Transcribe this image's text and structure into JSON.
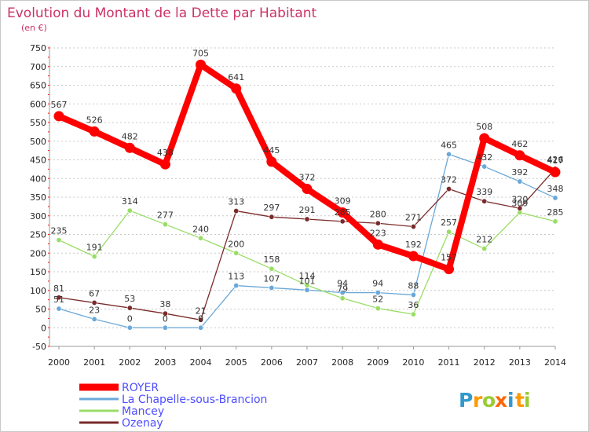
{
  "chart_data": {
    "type": "line",
    "title": "Evolution du Montant de la Dette par Habitant",
    "subtitle": "(en €)",
    "xlabel": "",
    "ylabel": "",
    "x": [
      "2000",
      "2001",
      "2002",
      "2003",
      "2004",
      "2005",
      "2006",
      "2007",
      "2008",
      "2009",
      "2010",
      "2011",
      "2012",
      "2013",
      "2014"
    ],
    "ylim": [
      -50,
      750
    ],
    "yticks": [
      -50,
      0,
      50,
      100,
      150,
      200,
      250,
      300,
      350,
      400,
      450,
      500,
      550,
      600,
      650,
      700,
      750
    ],
    "ytick_labels": [
      "-50",
      "0",
      "50",
      "100",
      "150",
      "200",
      "250",
      "300",
      "350",
      "400",
      "450",
      "500",
      "550",
      "600",
      "650",
      "700",
      "750"
    ],
    "grid": "horizontal dotted",
    "legend_position": "bottom",
    "series": [
      {
        "name": "ROYER",
        "color": "#ff0000",
        "values": [
          567,
          526,
          482,
          438,
          705,
          641,
          445,
          372,
          309,
          223,
          192,
          157,
          508,
          462,
          417
        ],
        "labels": [
          "567",
          "526",
          "482",
          "438",
          "705",
          "641",
          "445",
          "372",
          "309",
          "223",
          "192",
          "157",
          "508",
          "462",
          "417"
        ]
      },
      {
        "name": "La Chapelle-sous-Brancion",
        "color": "#6aa8d8",
        "values": [
          51,
          23,
          0,
          0,
          0,
          113,
          107,
          101,
          94,
          94,
          88,
          465,
          432,
          392,
          348
        ],
        "labels": [
          "51",
          "23",
          "0",
          "0",
          "0",
          "113",
          "107",
          "101",
          "94",
          "94",
          "88",
          "465",
          "432",
          "392",
          "348"
        ]
      },
      {
        "name": "Mancey",
        "color": "#99dd66",
        "values": [
          235,
          191,
          314,
          277,
          240,
          200,
          158,
          114,
          79,
          52,
          36,
          257,
          212,
          309,
          285
        ],
        "labels": [
          "235",
          "191",
          "314",
          "277",
          "240",
          "200",
          "158",
          "114",
          "79",
          "52",
          "36",
          "257",
          "212",
          "309",
          "285"
        ]
      },
      {
        "name": "Ozenay",
        "color": "#7a2a2a",
        "values": [
          81,
          67,
          53,
          38,
          21,
          313,
          297,
          291,
          285,
          280,
          271,
          372,
          339,
          320,
          426
        ],
        "labels": [
          "81",
          "67",
          "53",
          "38",
          "21",
          "313",
          "297",
          "291",
          "285",
          "280",
          "271",
          "372",
          "339",
          "320",
          "426"
        ]
      }
    ]
  },
  "logo": {
    "text": "Proxiti",
    "letters": [
      {
        "ch": "P",
        "color": "#3399cc"
      },
      {
        "ch": "r",
        "color": "#ff9900"
      },
      {
        "ch": "o",
        "color": "#99cc33"
      },
      {
        "ch": "x",
        "color": "#ff6600"
      },
      {
        "ch": "i",
        "color": "#3399cc"
      },
      {
        "ch": "t",
        "color": "#ff9900"
      },
      {
        "ch": "i",
        "color": "#99cc33"
      }
    ]
  }
}
